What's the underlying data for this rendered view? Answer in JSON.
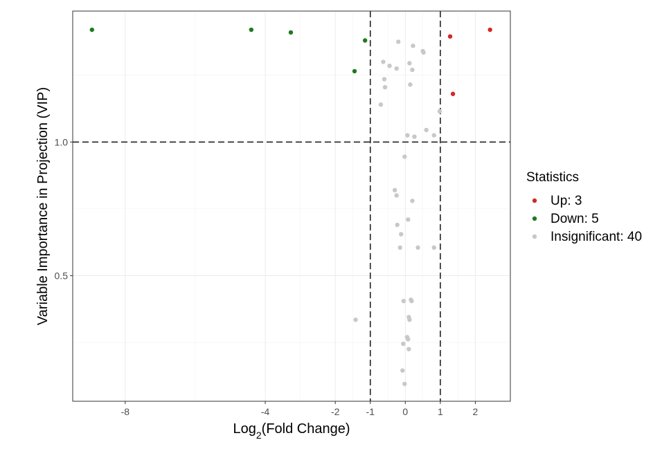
{
  "chart_data": {
    "type": "scatter",
    "title": "",
    "xlabel": "Log2(Fold Change)",
    "xlabel_base": "Log",
    "xlabel_sub": "2",
    "xlabel_rest": "(Fold Change)",
    "ylabel": "Variable Importance in Projection (VIP)",
    "xlim": [
      -9.5,
      3
    ],
    "ylim": [
      0.03,
      1.49
    ],
    "x_ticks": [
      -8,
      -4,
      -2,
      -1,
      0,
      1,
      2
    ],
    "x_tick_labels": [
      "-8",
      "-4",
      "-2",
      "-1",
      "0",
      "1",
      "2"
    ],
    "y_ticks": [
      0.5,
      1.0
    ],
    "y_tick_labels": [
      "0.5",
      "1.0"
    ],
    "grid": true,
    "thresholds": {
      "vline": [
        -1,
        1
      ],
      "hline": [
        1.0
      ]
    },
    "legend": {
      "title": "Statistics",
      "placement": "right",
      "entries": [
        {
          "key": "up",
          "label": "Up: 3",
          "color": "#d62728"
        },
        {
          "key": "down",
          "label": "Down: 5",
          "color": "#1f7a1f"
        },
        {
          "key": "insig",
          "label": "Insignificant: 40",
          "color": "#c8c8c8"
        }
      ]
    },
    "series": [
      {
        "key": "up",
        "color": "#d62728",
        "points": [
          {
            "x": 1.28,
            "y": 1.395
          },
          {
            "x": 2.42,
            "y": 1.42
          },
          {
            "x": 1.36,
            "y": 1.18
          }
        ]
      },
      {
        "key": "down",
        "color": "#1f7a1f",
        "points": [
          {
            "x": -8.95,
            "y": 1.42
          },
          {
            "x": -4.4,
            "y": 1.42
          },
          {
            "x": -3.27,
            "y": 1.41
          },
          {
            "x": -1.15,
            "y": 1.38
          },
          {
            "x": -1.45,
            "y": 1.265
          }
        ]
      },
      {
        "key": "insig",
        "color": "#c8c8c8",
        "points": [
          {
            "x": -0.2,
            "y": 1.375
          },
          {
            "x": 0.22,
            "y": 1.36
          },
          {
            "x": 0.5,
            "y": 1.34
          },
          {
            "x": 0.52,
            "y": 1.335
          },
          {
            "x": -0.63,
            "y": 1.3
          },
          {
            "x": 0.12,
            "y": 1.295
          },
          {
            "x": -0.45,
            "y": 1.285
          },
          {
            "x": -0.25,
            "y": 1.275
          },
          {
            "x": 0.2,
            "y": 1.27
          },
          {
            "x": -0.6,
            "y": 1.235
          },
          {
            "x": 0.14,
            "y": 1.215
          },
          {
            "x": -0.58,
            "y": 1.205
          },
          {
            "x": -0.7,
            "y": 1.14
          },
          {
            "x": 0.98,
            "y": 1.115
          },
          {
            "x": 0.6,
            "y": 1.045
          },
          {
            "x": 0.82,
            "y": 1.025
          },
          {
            "x": 0.06,
            "y": 1.025
          },
          {
            "x": 0.26,
            "y": 1.02
          },
          {
            "x": -0.02,
            "y": 0.945
          },
          {
            "x": -0.3,
            "y": 0.82
          },
          {
            "x": -0.25,
            "y": 0.8
          },
          {
            "x": 0.2,
            "y": 0.78
          },
          {
            "x": 0.08,
            "y": 0.71
          },
          {
            "x": -0.23,
            "y": 0.69
          },
          {
            "x": -0.12,
            "y": 0.655
          },
          {
            "x": -0.15,
            "y": 0.605
          },
          {
            "x": 0.36,
            "y": 0.605
          },
          {
            "x": 0.82,
            "y": 0.605
          },
          {
            "x": 0.16,
            "y": 0.41
          },
          {
            "x": 0.18,
            "y": 0.405
          },
          {
            "x": -0.05,
            "y": 0.405
          },
          {
            "x": -1.42,
            "y": 0.335
          },
          {
            "x": 0.1,
            "y": 0.345
          },
          {
            "x": 0.12,
            "y": 0.335
          },
          {
            "x": 0.05,
            "y": 0.27
          },
          {
            "x": 0.08,
            "y": 0.262
          },
          {
            "x": -0.06,
            "y": 0.245
          },
          {
            "x": 0.1,
            "y": 0.225
          },
          {
            "x": -0.08,
            "y": 0.145
          },
          {
            "x": -0.02,
            "y": 0.095
          }
        ]
      }
    ]
  }
}
